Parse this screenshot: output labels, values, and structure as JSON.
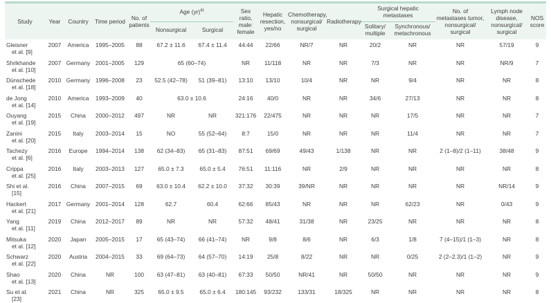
{
  "colors": {
    "top_rule": "#b5dac8",
    "bottom_rule": "#bfdfd1",
    "header_background": "#edf5f0",
    "group_underline": "#a3cfbd",
    "text": "#3c3c3c"
  },
  "table": {
    "header": {
      "study": "Study",
      "year": "Year",
      "country": "Country",
      "time_period": "Time period",
      "patients": [
        "No. of",
        "patients"
      ],
      "age_label": "Age (yr)",
      "age_sup": "a)",
      "nonsurgical": "Nonsurgical",
      "surgical": "Surgical",
      "sex": [
        "Sex",
        "ratio,",
        "male:",
        "female"
      ],
      "hepatic": [
        "Hepatic",
        "resection,",
        "yes/no"
      ],
      "chemo": [
        "Chemotherapy,",
        "nonsurgical/",
        "surgical"
      ],
      "radio": "Radiotherapy",
      "surgical_hepatic_metastases": "Surgical hepatic metastases",
      "solitary": [
        "Solitary/",
        "multiple"
      ],
      "synchronous": [
        "Synchronous/",
        "metachronous"
      ],
      "num_metastases": [
        "No. of",
        "metastases tumor,",
        "nonsurgical/",
        "surgical"
      ],
      "lymph": [
        "Lymph node",
        "disease,",
        "nonsurgical/",
        "surgical"
      ],
      "nos": [
        "NOS",
        "score"
      ]
    },
    "rows": [
      {
        "study": [
          "Gleisner",
          "et al. [9]"
        ],
        "values": [
          "2007",
          "America",
          "1995–2005",
          "88",
          "67.2 ± 11.6",
          "67.4 ± 11.4",
          "44:44",
          "22/66",
          "NR/7",
          "NR",
          "20/2",
          "NR",
          "NR",
          "57/19",
          "9"
        ]
      },
      {
        "study": [
          "Shrikhande",
          "et al. [10]"
        ],
        "values": [
          "2007",
          "Germany",
          "2001–2005",
          "129",
          {
            "v": "65 (60–74)",
            "colspan": 2
          },
          "NR",
          "11/118",
          "NR",
          "NR",
          "7/3",
          "NR",
          "NR",
          "NR/9",
          "7"
        ]
      },
      {
        "study": [
          "Dünschede",
          "et al. [18]"
        ],
        "values": [
          "2010",
          "Germany",
          "1996–2008",
          "23",
          "52.5 (42–78)",
          "51 (39–81)",
          "13:10",
          "13/10",
          "10/4",
          "NR",
          "NR",
          "9/4",
          "NR",
          "NR",
          "8"
        ]
      },
      {
        "study": [
          "de Jong",
          "et al. [14]"
        ],
        "values": [
          "2010",
          "America",
          "1993–2009",
          "40",
          {
            "v": "63.0 ± 10.6",
            "colspan": 2
          },
          "24:16",
          "40/0",
          "NR",
          "NR",
          "34/6",
          "27/13",
          "NR",
          "NR",
          "8"
        ]
      },
      {
        "study": [
          "Ouyang",
          "et al. [19]"
        ],
        "values": [
          "2015",
          "China",
          "2000–2012",
          "497",
          "NR",
          "NR",
          "321:176",
          "22/475",
          "NR",
          "NR",
          "NR",
          "17/5",
          "NR",
          "NR",
          "7"
        ]
      },
      {
        "study": [
          "Zanini",
          "et al. [20]"
        ],
        "values": [
          "2015",
          "Italy",
          "2003–2014",
          "15",
          "NO",
          "55 (52–64)",
          "8:7",
          "15/0",
          "NR",
          "NR",
          "NR",
          "11/4",
          "NR",
          "NR",
          "7"
        ]
      },
      {
        "study": [
          "Tachezy",
          "et al. [6]"
        ],
        "values": [
          "2016",
          "Europe",
          "1994–2014",
          "138",
          "62 (34–83)",
          "65 (31–83)",
          "87:51",
          "69/69",
          "49/43",
          "1/138",
          "NR",
          "NR",
          "2 (1–8)/2 (1–11)",
          "38/48",
          "9"
        ]
      },
      {
        "study": [
          "Crippa",
          "et al. [25]"
        ],
        "values": [
          "2016",
          "Italy",
          "2003–2013",
          "127",
          "65.0 ± 7.3",
          "65.0 ± 5.4",
          "76:51",
          "11:116",
          "NR",
          "2/9",
          "NR",
          "NR",
          "NR",
          "NR",
          "8"
        ]
      },
      {
        "study": [
          "Shi et al.",
          "[15]"
        ],
        "values": [
          "2016",
          "China",
          "2007–2015",
          "69",
          "63.0 ± 10.4",
          "62.2 ± 10.0",
          "37:32",
          "30:39",
          "39/NR",
          "NR",
          "NR",
          "NR",
          "NR",
          "NR/14",
          "9"
        ]
      },
      {
        "study": [
          "Hackert",
          "et al. [21]"
        ],
        "values": [
          "2017",
          "Germany",
          "2001–2014",
          "128",
          "62.7",
          "60.4",
          "62:66",
          "85/43",
          "NR",
          "NR",
          "NR",
          "62/23",
          "NR",
          "0/43",
          "9"
        ]
      },
      {
        "study": [
          "Yang",
          "et al. [11]"
        ],
        "values": [
          "2019",
          "China",
          "2012–2017",
          "89",
          "NR",
          "NR",
          "57:32",
          "48/41",
          "31/38",
          "NR",
          "23/25",
          "NR",
          "NR",
          "NR",
          "8"
        ]
      },
      {
        "study": [
          "Mitsuka",
          "et al. [12]"
        ],
        "values": [
          "2020",
          "Japan",
          "2005–2015",
          "17",
          "65 (43–74)",
          "66 (41–74)",
          "NR",
          "9/8",
          "8/6",
          "NR",
          "6/3",
          "1/8",
          "7 (4–15)/1 (1–3)",
          "NR",
          "8"
        ]
      },
      {
        "study": [
          "Schwarz",
          "et al. [22]"
        ],
        "values": [
          "2020",
          "Austria",
          "2004–2015",
          "33",
          "69 (64–73)",
          "64 (57–70)",
          "14:19",
          "25/8",
          "8/22",
          "NR",
          "NR",
          "0/25",
          "2 (2–2.3)/1 (1–2)",
          "NR",
          "9"
        ]
      },
      {
        "study": [
          "Shao",
          "et al. [13]"
        ],
        "values": [
          "2020",
          "China",
          "NR",
          "100",
          "63 (47–81)",
          "63 (40–81)",
          "67:33",
          "50/50",
          "NR/41",
          "NR",
          "50/50",
          "NR",
          "NR",
          "NR",
          "9"
        ]
      },
      {
        "study": [
          "Su et al.",
          "[23]"
        ],
        "values": [
          "2021",
          "China",
          "NR",
          "325",
          "65.0 ± 9.5",
          "65.0 ± 6.4",
          "180:145",
          "93/232",
          "133/31",
          "18/325",
          "NR",
          "NR",
          "NR",
          "NR",
          "8"
        ]
      }
    ]
  }
}
